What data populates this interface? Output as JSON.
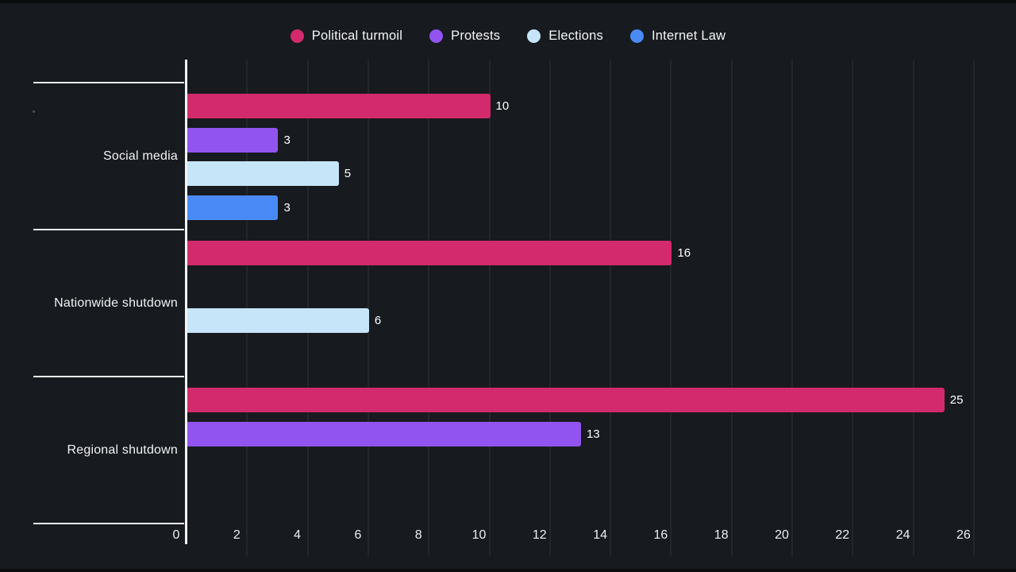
{
  "chart_data": {
    "type": "bar",
    "orientation": "horizontal",
    "title": "",
    "xlabel": "",
    "ylabel": "",
    "categories": [
      "Social media",
      "Nationwide shutdown",
      "Regional shutdown"
    ],
    "series": [
      {
        "name": "Political turmoil",
        "color": "#d32a6d",
        "values": [
          10,
          16,
          25
        ]
      },
      {
        "name": "Protests",
        "color": "#9254f0",
        "values": [
          3,
          null,
          13
        ]
      },
      {
        "name": "Elections",
        "color": "#c6e5f9",
        "values": [
          5,
          6,
          null
        ]
      },
      {
        "name": "Internet Law",
        "color": "#4a8af6",
        "values": [
          3,
          null,
          null
        ]
      }
    ],
    "xlim": [
      0,
      26
    ],
    "x_ticks": [
      0,
      2,
      4,
      6,
      8,
      10,
      12,
      14,
      16,
      18,
      20,
      22,
      24,
      26
    ],
    "grid": true,
    "legend_position": "top"
  },
  "theme": {
    "background": "#171a1e",
    "gridline": "#23262b",
    "axis_line": "#f3f4f6",
    "text": "#f2f3f5",
    "value_label": "#ffffff"
  }
}
